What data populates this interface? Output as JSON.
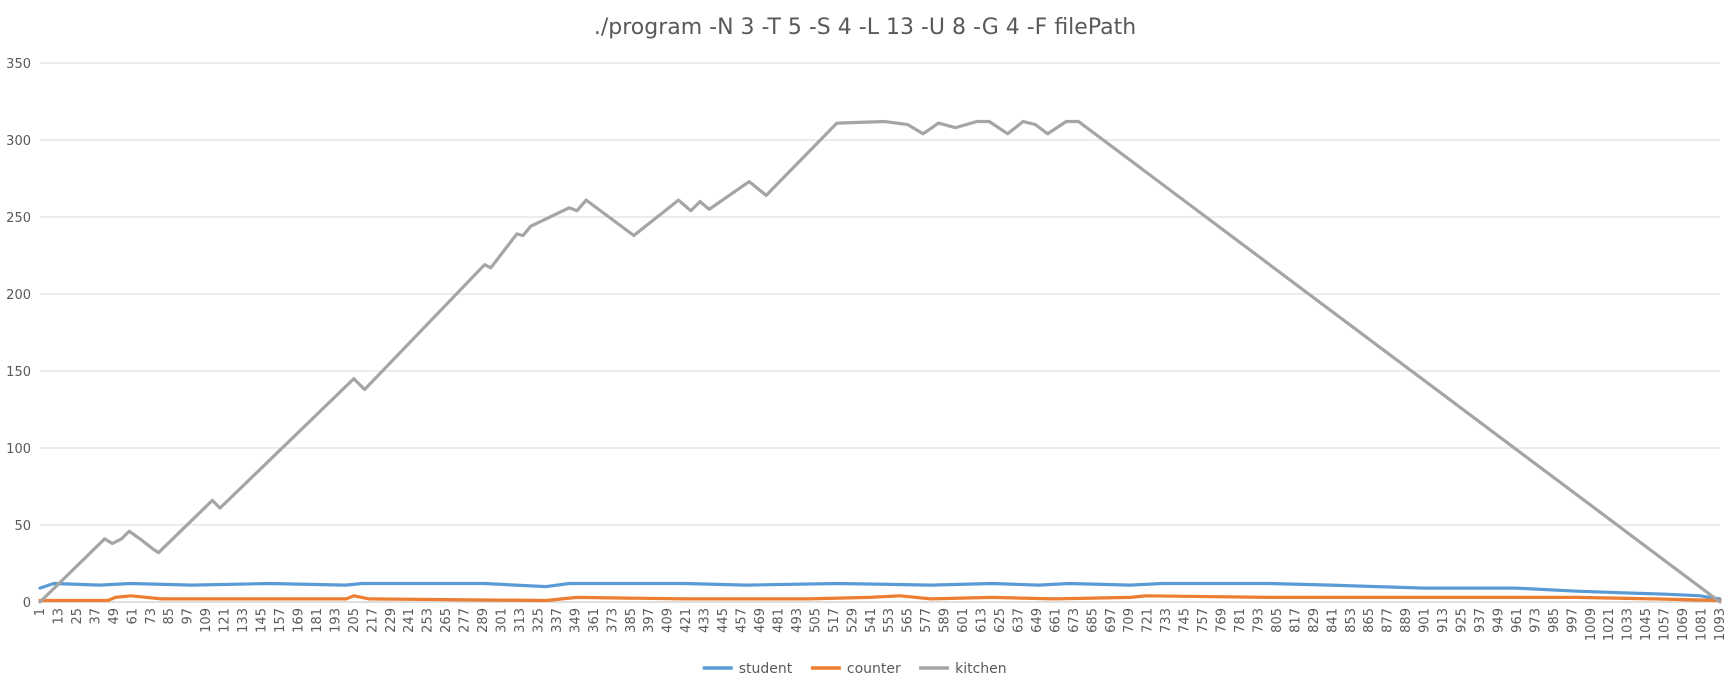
{
  "chart_data": {
    "type": "line",
    "title": "./program -N 3 -T 5 -S 4 -L 13 -U 8 -G 4 -F filePath",
    "xlabel": "",
    "ylabel": "",
    "x_range": [
      1,
      1093
    ],
    "x_tick_start": 1,
    "x_tick_step": 12,
    "ylim": [
      0,
      350
    ],
    "y_ticks": [
      0,
      50,
      100,
      150,
      200,
      250,
      300,
      350
    ],
    "grid": "horizontal",
    "legend_position": "bottom",
    "series": [
      {
        "name": "student",
        "color": "#5B9BD5",
        "points": [
          [
            1,
            9
          ],
          [
            10,
            12
          ],
          [
            40,
            11
          ],
          [
            60,
            12
          ],
          [
            100,
            11
          ],
          [
            150,
            12
          ],
          [
            200,
            11
          ],
          [
            210,
            12
          ],
          [
            290,
            12
          ],
          [
            310,
            11
          ],
          [
            330,
            10
          ],
          [
            345,
            12
          ],
          [
            420,
            12
          ],
          [
            460,
            11
          ],
          [
            520,
            12
          ],
          [
            580,
            11
          ],
          [
            620,
            12
          ],
          [
            650,
            11
          ],
          [
            670,
            12
          ],
          [
            710,
            11
          ],
          [
            730,
            12
          ],
          [
            800,
            12
          ],
          [
            840,
            11
          ],
          [
            870,
            10
          ],
          [
            900,
            9
          ],
          [
            960,
            9
          ],
          [
            1000,
            7
          ],
          [
            1030,
            6
          ],
          [
            1060,
            5
          ],
          [
            1080,
            4
          ],
          [
            1093,
            2
          ]
        ]
      },
      {
        "name": "counter",
        "color": "#ED7D31",
        "points": [
          [
            1,
            1
          ],
          [
            45,
            1
          ],
          [
            50,
            3
          ],
          [
            60,
            4
          ],
          [
            80,
            2
          ],
          [
            200,
            2
          ],
          [
            205,
            4
          ],
          [
            215,
            2
          ],
          [
            330,
            1
          ],
          [
            350,
            3
          ],
          [
            420,
            2
          ],
          [
            500,
            2
          ],
          [
            540,
            3
          ],
          [
            560,
            4
          ],
          [
            580,
            2
          ],
          [
            620,
            3
          ],
          [
            660,
            2
          ],
          [
            710,
            3
          ],
          [
            720,
            4
          ],
          [
            800,
            3
          ],
          [
            900,
            3
          ],
          [
            1000,
            3
          ],
          [
            1050,
            2
          ],
          [
            1093,
            1
          ]
        ]
      },
      {
        "name": "kitchen",
        "color": "#A5A5A5",
        "points": [
          [
            1,
            0
          ],
          [
            43,
            41
          ],
          [
            48,
            38
          ],
          [
            54,
            41
          ],
          [
            59,
            46
          ],
          [
            66,
            41
          ],
          [
            75,
            34
          ],
          [
            78,
            32
          ],
          [
            113,
            66
          ],
          [
            118,
            61
          ],
          [
            205,
            145
          ],
          [
            212,
            138
          ],
          [
            290,
            219
          ],
          [
            294,
            217
          ],
          [
            311,
            239
          ],
          [
            315,
            238
          ],
          [
            320,
            244
          ],
          [
            345,
            256
          ],
          [
            350,
            254
          ],
          [
            356,
            261
          ],
          [
            387,
            238
          ],
          [
            416,
            261
          ],
          [
            424,
            254
          ],
          [
            430,
            260
          ],
          [
            436,
            255
          ],
          [
            462,
            273
          ],
          [
            473,
            264
          ],
          [
            519,
            311
          ],
          [
            550,
            312
          ],
          [
            565,
            310
          ],
          [
            575,
            304
          ],
          [
            585,
            311
          ],
          [
            596,
            308
          ],
          [
            610,
            312
          ],
          [
            618,
            312
          ],
          [
            630,
            304
          ],
          [
            640,
            312
          ],
          [
            648,
            310
          ],
          [
            656,
            304
          ],
          [
            668,
            312
          ],
          [
            676,
            312
          ],
          [
            1093,
            0
          ]
        ]
      }
    ]
  }
}
